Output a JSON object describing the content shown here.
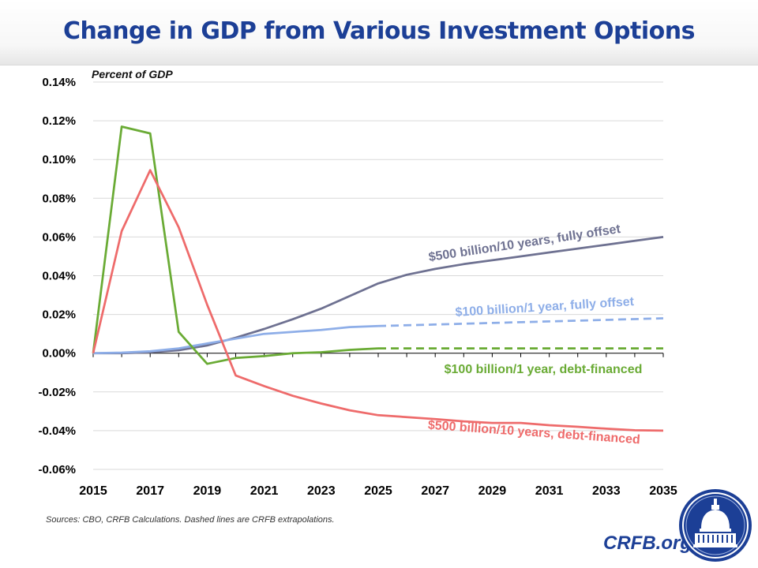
{
  "header": {
    "title": "Change in GDP from Various Investment Options"
  },
  "footer": {
    "sources": "Sources:  CBO, CRFB Calculations.  Dashed lines are CRFB extrapolations.",
    "brand": "CRFB.org"
  },
  "colors": {
    "gray": "#6e7191",
    "light_blue": "#8eaee8",
    "green": "#6aab35",
    "red": "#ee6b6b",
    "title": "#1c3f96"
  },
  "chart_data": {
    "type": "line",
    "ylabel": "Percent of GDP",
    "xlabel": "",
    "xlim": [
      2015,
      2035
    ],
    "ylim": [
      -0.06,
      0.14
    ],
    "x_ticks": [
      "2015",
      "2017",
      "2019",
      "2021",
      "2023",
      "2025",
      "2027",
      "2029",
      "2031",
      "2033",
      "2035"
    ],
    "y_ticks": [
      "0.14%",
      "0.12%",
      "0.10%",
      "0.08%",
      "0.06%",
      "0.04%",
      "0.02%",
      "0.00%",
      "-0.02%",
      "-0.04%",
      "-0.06%"
    ],
    "grid": true,
    "series": [
      {
        "name": "$500 billion/10 years, fully offset",
        "color": "#6e7191",
        "dash": false,
        "x": [
          2015,
          2016,
          2017,
          2018,
          2019,
          2020,
          2021,
          2022,
          2023,
          2024,
          2025,
          2026,
          2027,
          2028,
          2029,
          2030,
          2031,
          2032,
          2033,
          2034,
          2035
        ],
        "y": [
          0,
          0,
          0.0005,
          0.0015,
          0.004,
          0.008,
          0.0125,
          0.0175,
          0.023,
          0.0295,
          0.036,
          0.0405,
          0.0435,
          0.046,
          0.048,
          0.05,
          0.052,
          0.054,
          0.056,
          0.058,
          0.06
        ]
      },
      {
        "name": "$100 billion/1 year, fully offset",
        "color": "#8eaee8",
        "dash": false,
        "x": [
          2015,
          2016,
          2017,
          2018,
          2019,
          2020,
          2021,
          2022,
          2023,
          2024,
          2025
        ],
        "y": [
          0,
          0.0003,
          0.001,
          0.0025,
          0.005,
          0.0075,
          0.01,
          0.011,
          0.012,
          0.0135,
          0.014
        ]
      },
      {
        "name": "$100 billion/1 year, fully offset (extrapolation)",
        "color": "#8eaee8",
        "dash": true,
        "x": [
          2025,
          2035
        ],
        "y": [
          0.014,
          0.018
        ]
      },
      {
        "name": "$100 billion/1 year, debt-financed",
        "color": "#6aab35",
        "dash": false,
        "x": [
          2015,
          2016,
          2017,
          2018,
          2019,
          2020,
          2021,
          2022,
          2023,
          2024,
          2025
        ],
        "y": [
          0,
          0.117,
          0.1135,
          0.011,
          -0.0055,
          -0.0025,
          -0.0015,
          0,
          0.0005,
          0.0017,
          0.0025
        ]
      },
      {
        "name": "$100 billion/1 year, debt-financed (extrapolation)",
        "color": "#6aab35",
        "dash": true,
        "x": [
          2025,
          2035
        ],
        "y": [
          0.0025,
          0.0025
        ]
      },
      {
        "name": "$500 billion/10 years, debt-financed",
        "color": "#ee6b6b",
        "dash": false,
        "x": [
          2015,
          2016,
          2017,
          2018,
          2019,
          2020,
          2021,
          2022,
          2023,
          2024,
          2025,
          2026,
          2027,
          2028,
          2029,
          2030,
          2031,
          2032,
          2033,
          2034,
          2035
        ],
        "y": [
          0,
          0.063,
          0.0945,
          0.065,
          0.025,
          -0.0115,
          -0.017,
          -0.022,
          -0.026,
          -0.0295,
          -0.032,
          -0.033,
          -0.034,
          -0.0352,
          -0.036,
          -0.036,
          -0.0372,
          -0.038,
          -0.039,
          -0.0398,
          -0.04
        ]
      }
    ],
    "annotations": [
      {
        "text": "$500 billion/10 years, fully offset",
        "color": "#6e7191"
      },
      {
        "text": "$100 billion/1 year, fully offset",
        "color": "#8eaee8"
      },
      {
        "text": "$100 billion/1 year, debt-financed",
        "color": "#6aab35"
      },
      {
        "text": "$500 billion/10 years, debt-financed",
        "color": "#ee6b6b"
      }
    ]
  }
}
